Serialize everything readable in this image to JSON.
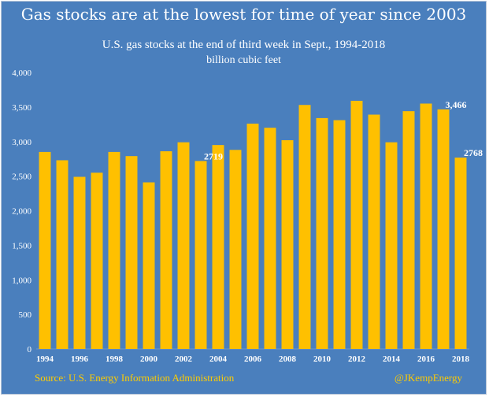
{
  "header": {
    "title": "Gas stocks are at the lowest for time of year since 2003",
    "subtitle": "U.S. gas stocks at the end of third week in Sept., 1994-2018",
    "units": "billion cubic feet"
  },
  "footer": {
    "source": "Source: U.S. Energy Information Administration",
    "handle": "@JKempEnergy"
  },
  "colors": {
    "background": "#4a7fbd",
    "bar": "#ffc000",
    "axis_text": "#ffffff",
    "footer_text": "#ffcc00"
  },
  "chart_data": {
    "type": "bar",
    "title": "U.S. gas stocks at the end of third week in Sept., 1994-2018",
    "ylabel": "billion cubic feet",
    "categories": [
      "1994",
      "1995",
      "1996",
      "1997",
      "1998",
      "1999",
      "2000",
      "2001",
      "2002",
      "2003",
      "2004",
      "2005",
      "2006",
      "2007",
      "2008",
      "2009",
      "2010",
      "2011",
      "2012",
      "2013",
      "2014",
      "2015",
      "2016",
      "2017",
      "2018"
    ],
    "values": [
      2850,
      2730,
      2490,
      2550,
      2850,
      2790,
      2410,
      2860,
      2990,
      2719,
      2950,
      2880,
      3260,
      3200,
      3020,
      3530,
      3340,
      3310,
      3590,
      3390,
      2990,
      3440,
      3550,
      3466,
      2768
    ],
    "ylim": [
      0,
      4000
    ],
    "yticks": [
      0,
      500,
      1000,
      1500,
      2000,
      2500,
      3000,
      3500,
      4000
    ],
    "ytick_labels": [
      "0",
      "500",
      "1,000",
      "1,500",
      "2,000",
      "2,500",
      "3,000",
      "3,500",
      "4,000"
    ],
    "xtick_labels": [
      "1994",
      "1996",
      "1998",
      "2000",
      "2002",
      "2004",
      "2006",
      "2008",
      "2010",
      "2012",
      "2014",
      "2016",
      "2018"
    ],
    "grid": false,
    "annotations": [
      {
        "category": "2003",
        "text": "2719"
      },
      {
        "category": "2017",
        "text": "3,466"
      },
      {
        "category": "2018",
        "text": "2768"
      }
    ]
  }
}
